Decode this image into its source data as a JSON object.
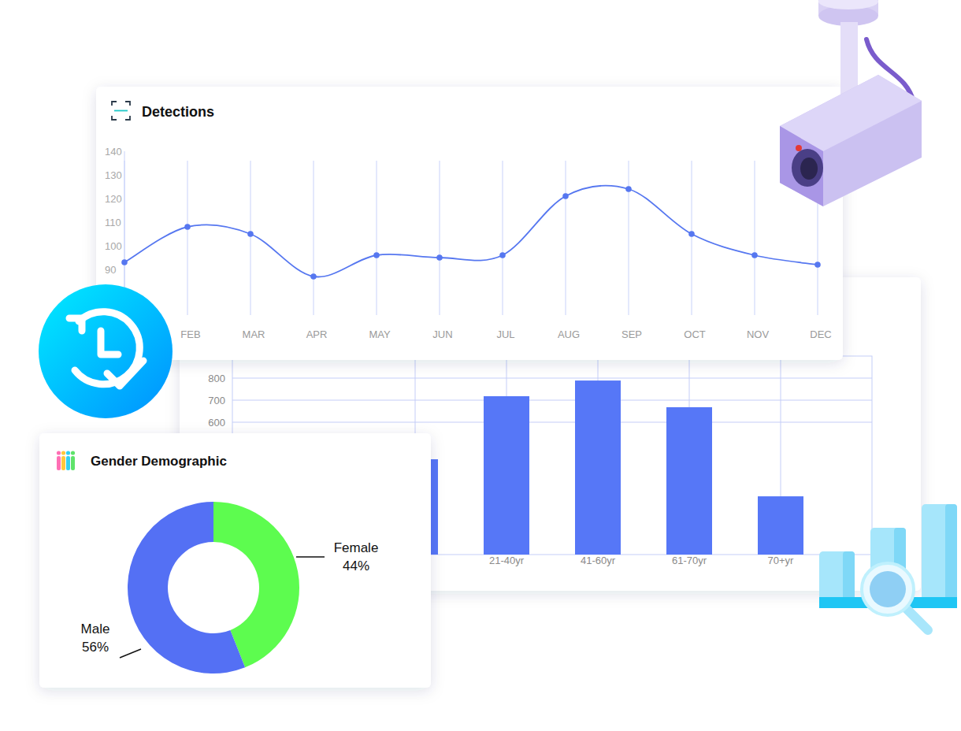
{
  "chart_data": [
    {
      "type": "line",
      "title": "Detections",
      "categories": [
        null,
        "FEB",
        "MAR",
        "APR",
        "MAY",
        "JUN",
        "JUL",
        "AUG",
        "SEP",
        "OCT",
        "NOV",
        "DEC"
      ],
      "values": [
        93,
        108,
        105,
        87,
        96,
        95,
        96,
        121,
        124,
        105,
        96,
        92
      ],
      "color": "#5677f0",
      "marker": "circle",
      "ylim": [
        80,
        140
      ],
      "yticks": [
        90,
        100,
        110,
        120,
        130,
        140
      ],
      "grid": true
    },
    {
      "type": "bar",
      "categories": [
        null,
        "21-40yr",
        "41-60yr",
        "61-70yr",
        "70+yr"
      ],
      "values": [
        432,
        718,
        789,
        668,
        264
      ],
      "color": "#5677f7",
      "ylim": [
        0,
        900
      ],
      "yticks": [
        600,
        700,
        800
      ],
      "grid": true
    },
    {
      "type": "donut",
      "title": "Gender Demographic",
      "categories": [
        "Female",
        "Male"
      ],
      "values": [
        44,
        56
      ],
      "value_labels": [
        "44%",
        "56%"
      ],
      "colors": [
        "#5dfc4f",
        "#5470f4"
      ]
    }
  ]
}
